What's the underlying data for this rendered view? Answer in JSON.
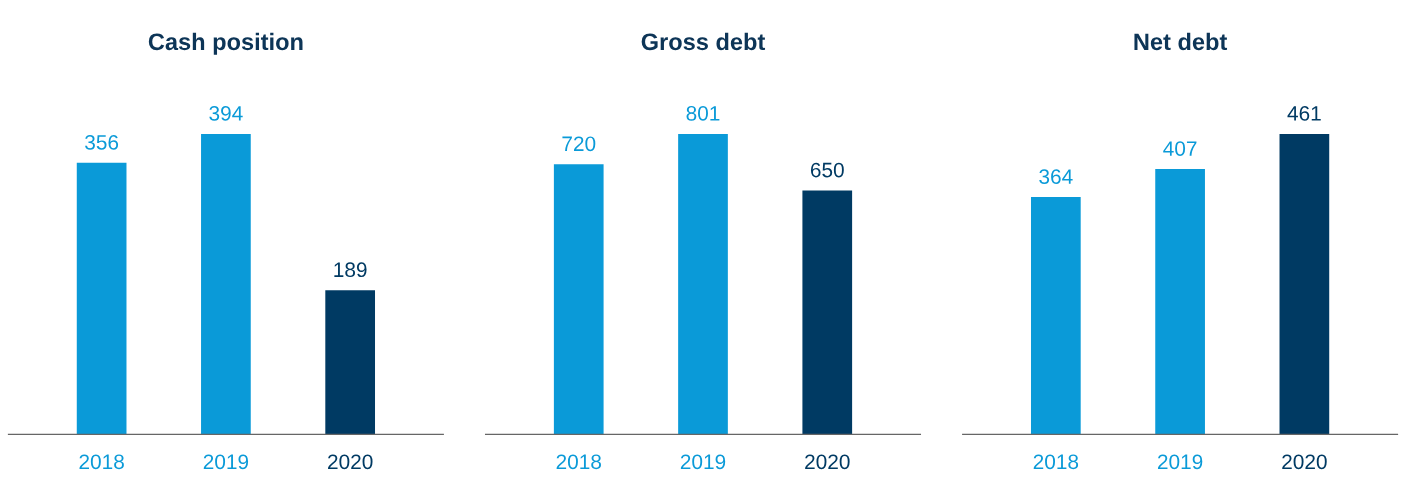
{
  "chart_data": [
    {
      "type": "bar",
      "title": "Cash position",
      "categories": [
        "2018",
        "2019",
        "2020"
      ],
      "values": [
        356,
        394,
        189
      ],
      "colors": [
        "#0a9ad8",
        "#0a9ad8",
        "#003a63"
      ],
      "data_labels": true,
      "grid": false,
      "legend": false,
      "tick_labels": "x"
    },
    {
      "type": "bar",
      "title": "Gross debt",
      "categories": [
        "2018",
        "2019",
        "2020"
      ],
      "values": [
        720,
        801,
        650
      ],
      "colors": [
        "#0a9ad8",
        "#0a9ad8",
        "#003a63"
      ],
      "data_labels": true,
      "grid": false,
      "legend": false,
      "tick_labels": "x"
    },
    {
      "type": "bar",
      "title": "Net debt",
      "categories": [
        "2018",
        "2019",
        "2020"
      ],
      "values": [
        364,
        407,
        461
      ],
      "colors": [
        "#0a9ad8",
        "#0a9ad8",
        "#003a63"
      ],
      "data_labels": true,
      "grid": false,
      "legend": false,
      "tick_labels": "x"
    }
  ]
}
